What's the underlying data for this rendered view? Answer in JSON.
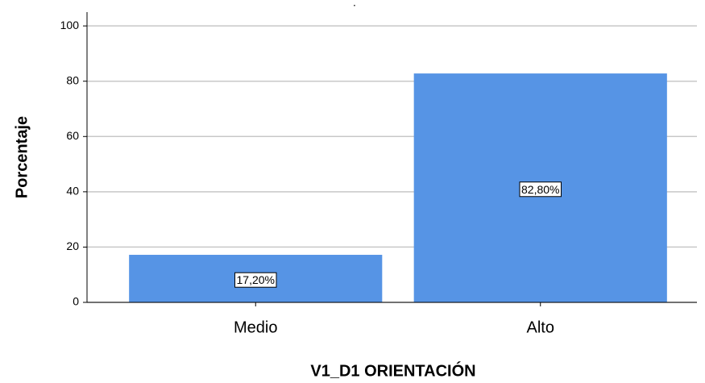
{
  "chart_data": {
    "type": "bar",
    "title": ".",
    "x_label": "V1_D1 ORIENTACIÓN",
    "y_label": "Porcentaje",
    "categories": [
      "Medio",
      "Alto"
    ],
    "values": [
      17.2,
      82.8
    ],
    "value_labels": [
      "17,20%",
      "82,80%"
    ],
    "color": "#5694e5",
    "ylim": [
      0,
      105
    ],
    "yticks": [
      0,
      20,
      40,
      60,
      80,
      100
    ],
    "grid": true
  }
}
